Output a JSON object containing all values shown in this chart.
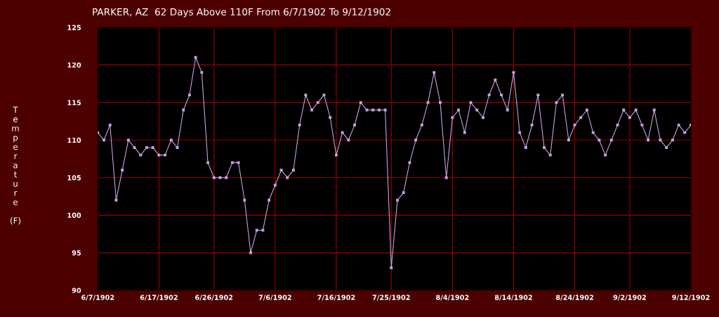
{
  "chart_data": {
    "type": "line",
    "title": "PARKER, AZ  62 Days Above 110F From 6/7/1902 To 9/12/1902",
    "ylabel": "Temperature (F)",
    "x": [
      "1902-06-07",
      "1902-06-08",
      "1902-06-09",
      "1902-06-10",
      "1902-06-11",
      "1902-06-12",
      "1902-06-13",
      "1902-06-14",
      "1902-06-15",
      "1902-06-16",
      "1902-06-17",
      "1902-06-18",
      "1902-06-19",
      "1902-06-20",
      "1902-06-21",
      "1902-06-22",
      "1902-06-23",
      "1902-06-24",
      "1902-06-25",
      "1902-06-26",
      "1902-06-27",
      "1902-06-28",
      "1902-06-29",
      "1902-06-30",
      "1902-07-01",
      "1902-07-02",
      "1902-07-03",
      "1902-07-04",
      "1902-07-05",
      "1902-07-06",
      "1902-07-07",
      "1902-07-08",
      "1902-07-09",
      "1902-07-10",
      "1902-07-11",
      "1902-07-12",
      "1902-07-13",
      "1902-07-14",
      "1902-07-15",
      "1902-07-16",
      "1902-07-17",
      "1902-07-18",
      "1902-07-19",
      "1902-07-20",
      "1902-07-21",
      "1902-07-22",
      "1902-07-23",
      "1902-07-24",
      "1902-07-25",
      "1902-07-26",
      "1902-07-27",
      "1902-07-28",
      "1902-07-29",
      "1902-07-30",
      "1902-07-31",
      "1902-08-01",
      "1902-08-02",
      "1902-08-03",
      "1902-08-04",
      "1902-08-05",
      "1902-08-06",
      "1902-08-07",
      "1902-08-08",
      "1902-08-09",
      "1902-08-10",
      "1902-08-11",
      "1902-08-12",
      "1902-08-13",
      "1902-08-14",
      "1902-08-15",
      "1902-08-16",
      "1902-08-17",
      "1902-08-18",
      "1902-08-19",
      "1902-08-20",
      "1902-08-21",
      "1902-08-22",
      "1902-08-23",
      "1902-08-24",
      "1902-08-25",
      "1902-08-26",
      "1902-08-27",
      "1902-08-28",
      "1902-08-29",
      "1902-08-30",
      "1902-08-31",
      "1902-09-01",
      "1902-09-02",
      "1902-09-03",
      "1902-09-04",
      "1902-09-05",
      "1902-09-06",
      "1902-09-07",
      "1902-09-08",
      "1902-09-09",
      "1902-09-10",
      "1902-09-11",
      "1902-09-12"
    ],
    "series": [
      {
        "color": "#c8a0dc",
        "values": [
          111,
          110,
          112,
          102,
          106,
          110,
          109,
          108,
          109,
          109,
          108,
          108,
          110,
          109,
          114,
          116,
          121,
          119,
          107,
          105,
          105,
          105,
          107,
          107,
          102,
          95,
          98,
          98,
          102,
          104,
          106,
          105,
          106,
          112,
          116,
          114,
          115,
          116,
          113,
          108,
          111,
          110,
          112,
          115,
          114,
          114,
          114,
          114,
          93,
          102,
          103,
          107,
          110,
          112,
          115,
          119,
          115,
          105,
          113,
          114,
          111,
          115,
          114,
          113,
          116,
          118,
          116,
          114,
          119,
          111,
          109,
          112,
          116,
          109,
          108,
          115,
          116,
          110,
          112,
          113,
          114,
          111,
          110,
          108,
          110,
          112,
          114,
          113,
          114,
          112,
          110,
          114,
          110,
          109,
          110,
          112,
          111,
          112
        ]
      }
    ],
    "xlim": [
      "1902-06-07",
      "1902-09-12"
    ],
    "xticks": [
      {
        "value": "1902-06-07",
        "label": "6/7/1902"
      },
      {
        "value": "1902-06-17",
        "label": "6/17/1902"
      },
      {
        "value": "1902-06-26",
        "label": "6/26/1902"
      },
      {
        "value": "1902-07-06",
        "label": "7/6/1902"
      },
      {
        "value": "1902-07-16",
        "label": "7/16/1902"
      },
      {
        "value": "1902-07-25",
        "label": "7/25/1902"
      },
      {
        "value": "1902-08-04",
        "label": "8/4/1902"
      },
      {
        "value": "1902-08-14",
        "label": "8/14/1902"
      },
      {
        "value": "1902-08-24",
        "label": "8/24/1902"
      },
      {
        "value": "1902-09-02",
        "label": "9/2/1902"
      },
      {
        "value": "1902-09-12",
        "label": "9/12/1902"
      }
    ],
    "ylim": [
      90,
      125
    ],
    "yticks": [
      90,
      95,
      100,
      105,
      110,
      115,
      120,
      125
    ],
    "grid": true,
    "marker": "square",
    "line_style": "solid"
  }
}
